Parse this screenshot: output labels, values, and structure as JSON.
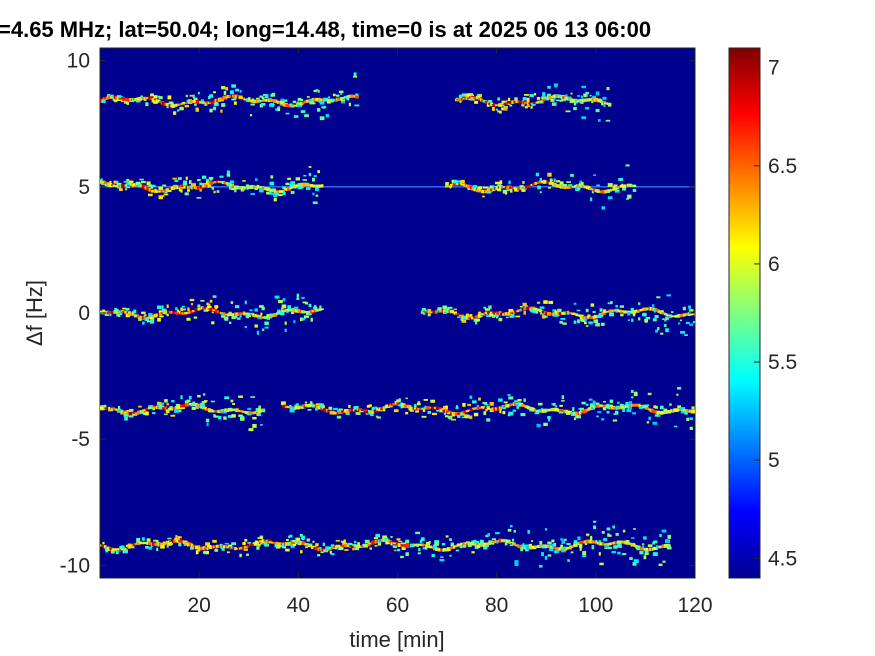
{
  "chart_data": {
    "type": "heatmap",
    "title": "=4.65 MHz;  lat=50.04; long=14.48, time=0 is at 2025 06 13 06:00",
    "xlabel": "time [min]",
    "ylabel": "Δf [Hz]",
    "xlim": [
      0,
      120
    ],
    "ylim": [
      -10.5,
      10.5
    ],
    "xticks": [
      20,
      40,
      60,
      80,
      100,
      120
    ],
    "yticks": [
      10,
      5,
      0,
      -5,
      -10
    ],
    "colorbar": {
      "range": [
        4.4,
        7.1
      ],
      "ticks": [
        4.5,
        5,
        5.5,
        6,
        6.5,
        7
      ],
      "colormap": "jet"
    },
    "grid": false,
    "background_color": "#00008f",
    "traces": [
      {
        "df": 8.4,
        "segments": [
          [
            0,
            52
          ],
          [
            72,
            103
          ]
        ]
      },
      {
        "df": 5.0,
        "segments": [
          [
            0,
            45
          ],
          [
            70,
            108
          ]
        ],
        "continuous_line": true
      },
      {
        "df": 0.0,
        "segments": [
          [
            0,
            45
          ],
          [
            65,
            120
          ]
        ]
      },
      {
        "df": -3.8,
        "segments": [
          [
            0,
            33
          ],
          [
            37,
            120
          ]
        ]
      },
      {
        "df": -9.2,
        "segments": [
          [
            0,
            115
          ]
        ]
      }
    ]
  }
}
